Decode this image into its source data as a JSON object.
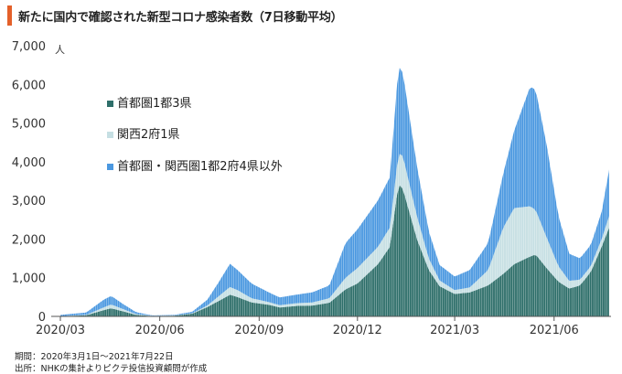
{
  "header": {
    "title": "新たに国内で確認された新型コロナ感染者数（7日移動平均）"
  },
  "footnotes": {
    "period": "期間：2020年3月1日～2021年7月22日",
    "source": "出所：NHKの集計よりピクテ投信投資顧問が作成"
  },
  "colors": {
    "accent": "#e4602a",
    "series_tokyo": "#2e6f6a",
    "series_kansai": "#c6dfe3",
    "series_other": "#4b98e0",
    "axis": "#444444",
    "grid": "#dddddd"
  },
  "chart_data": {
    "type": "area",
    "stacked": true,
    "unit_label": "人",
    "ylim": [
      0,
      7000
    ],
    "yticks": [
      0,
      1000,
      2000,
      3000,
      4000,
      5000,
      6000,
      7000
    ],
    "ytick_labels": [
      "0",
      "1,000",
      "2,000",
      "3,000",
      "4,000",
      "5,000",
      "6,000",
      "7,000"
    ],
    "x_range": [
      "2020-03-01",
      "2021-07-22"
    ],
    "xticks": [
      "2020-03-01",
      "2020-06-01",
      "2020-09-01",
      "2020-12-01",
      "2021-03-01",
      "2021-06-01"
    ],
    "xtick_labels": [
      "2020/03",
      "2020/06",
      "2020/09",
      "2020/12",
      "2021/03",
      "2021/06"
    ],
    "legend_position": "upper-left",
    "series": [
      {
        "name": "首都圏1都3県",
        "color": "#2e6f6a",
        "points": [
          [
            "2020-03-01",
            5
          ],
          [
            "2020-03-25",
            30
          ],
          [
            "2020-04-10",
            160
          ],
          [
            "2020-04-17",
            210
          ],
          [
            "2020-04-28",
            130
          ],
          [
            "2020-05-10",
            40
          ],
          [
            "2020-05-25",
            10
          ],
          [
            "2020-06-15",
            20
          ],
          [
            "2020-07-01",
            70
          ],
          [
            "2020-07-15",
            240
          ],
          [
            "2020-07-25",
            390
          ],
          [
            "2020-08-05",
            560
          ],
          [
            "2020-08-12",
            500
          ],
          [
            "2020-08-25",
            360
          ],
          [
            "2020-09-10",
            300
          ],
          [
            "2020-09-20",
            230
          ],
          [
            "2020-10-05",
            270
          ],
          [
            "2020-10-20",
            280
          ],
          [
            "2020-11-05",
            350
          ],
          [
            "2020-11-20",
            700
          ],
          [
            "2020-12-01",
            850
          ],
          [
            "2020-12-20",
            1350
          ],
          [
            "2020-12-31",
            1800
          ],
          [
            "2021-01-08",
            3420
          ],
          [
            "2021-01-12",
            3300
          ],
          [
            "2021-01-25",
            2000
          ],
          [
            "2021-02-05",
            1200
          ],
          [
            "2021-02-15",
            780
          ],
          [
            "2021-03-01",
            580
          ],
          [
            "2021-03-15",
            620
          ],
          [
            "2021-04-01",
            800
          ],
          [
            "2021-04-15",
            1100
          ],
          [
            "2021-04-25",
            1350
          ],
          [
            "2021-05-10",
            1550
          ],
          [
            "2021-05-15",
            1600
          ],
          [
            "2021-05-25",
            1250
          ],
          [
            "2021-06-05",
            900
          ],
          [
            "2021-06-15",
            720
          ],
          [
            "2021-06-25",
            800
          ],
          [
            "2021-07-05",
            1150
          ],
          [
            "2021-07-15",
            1800
          ],
          [
            "2021-07-22",
            2300
          ]
        ]
      },
      {
        "name": "関西2府1県",
        "color": "#c6dfe3",
        "points": [
          [
            "2020-03-01",
            2
          ],
          [
            "2020-03-25",
            10
          ],
          [
            "2020-04-10",
            70
          ],
          [
            "2020-04-17",
            100
          ],
          [
            "2020-04-28",
            60
          ],
          [
            "2020-05-10",
            20
          ],
          [
            "2020-05-25",
            5
          ],
          [
            "2020-06-15",
            5
          ],
          [
            "2020-07-01",
            10
          ],
          [
            "2020-07-15",
            40
          ],
          [
            "2020-07-25",
            120
          ],
          [
            "2020-08-05",
            200
          ],
          [
            "2020-08-12",
            180
          ],
          [
            "2020-08-25",
            110
          ],
          [
            "2020-09-10",
            70
          ],
          [
            "2020-09-20",
            60
          ],
          [
            "2020-10-05",
            70
          ],
          [
            "2020-10-20",
            80
          ],
          [
            "2020-11-05",
            120
          ],
          [
            "2020-11-20",
            300
          ],
          [
            "2020-12-01",
            400
          ],
          [
            "2020-12-20",
            450
          ],
          [
            "2020-12-31",
            500
          ],
          [
            "2021-01-08",
            800
          ],
          [
            "2021-01-12",
            850
          ],
          [
            "2021-01-25",
            600
          ],
          [
            "2021-02-05",
            300
          ],
          [
            "2021-02-15",
            150
          ],
          [
            "2021-03-01",
            100
          ],
          [
            "2021-03-15",
            130
          ],
          [
            "2021-04-01",
            400
          ],
          [
            "2021-04-15",
            1200
          ],
          [
            "2021-04-25",
            1450
          ],
          [
            "2021-05-10",
            1300
          ],
          [
            "2021-05-15",
            1150
          ],
          [
            "2021-05-25",
            800
          ],
          [
            "2021-06-05",
            400
          ],
          [
            "2021-06-15",
            200
          ],
          [
            "2021-06-25",
            150
          ],
          [
            "2021-07-05",
            150
          ],
          [
            "2021-07-15",
            200
          ],
          [
            "2021-07-22",
            300
          ]
        ]
      },
      {
        "name": "首都圏・関西圏1都2府4県以外",
        "color": "#4b98e0",
        "points": [
          [
            "2020-03-01",
            30
          ],
          [
            "2020-03-25",
            60
          ],
          [
            "2020-04-10",
            200
          ],
          [
            "2020-04-17",
            220
          ],
          [
            "2020-04-28",
            130
          ],
          [
            "2020-05-10",
            50
          ],
          [
            "2020-05-25",
            10
          ],
          [
            "2020-06-15",
            15
          ],
          [
            "2020-07-01",
            40
          ],
          [
            "2020-07-15",
            150
          ],
          [
            "2020-07-25",
            350
          ],
          [
            "2020-08-05",
            600
          ],
          [
            "2020-08-12",
            520
          ],
          [
            "2020-08-25",
            380
          ],
          [
            "2020-09-10",
            250
          ],
          [
            "2020-09-20",
            200
          ],
          [
            "2020-10-05",
            220
          ],
          [
            "2020-10-20",
            260
          ],
          [
            "2020-11-05",
            330
          ],
          [
            "2020-11-20",
            900
          ],
          [
            "2020-12-01",
            1000
          ],
          [
            "2020-12-20",
            1200
          ],
          [
            "2020-12-31",
            1300
          ],
          [
            "2021-01-08",
            2250
          ],
          [
            "2021-01-12",
            2150
          ],
          [
            "2021-01-25",
            1300
          ],
          [
            "2021-02-05",
            700
          ],
          [
            "2021-02-15",
            400
          ],
          [
            "2021-03-01",
            350
          ],
          [
            "2021-03-15",
            450
          ],
          [
            "2021-04-01",
            700
          ],
          [
            "2021-04-15",
            1400
          ],
          [
            "2021-04-25",
            2000
          ],
          [
            "2021-05-10",
            3100
          ],
          [
            "2021-05-15",
            3100
          ],
          [
            "2021-05-25",
            2400
          ],
          [
            "2021-06-05",
            1300
          ],
          [
            "2021-06-15",
            700
          ],
          [
            "2021-06-25",
            550
          ],
          [
            "2021-07-05",
            550
          ],
          [
            "2021-07-15",
            700
          ],
          [
            "2021-07-22",
            1200
          ]
        ]
      }
    ]
  }
}
